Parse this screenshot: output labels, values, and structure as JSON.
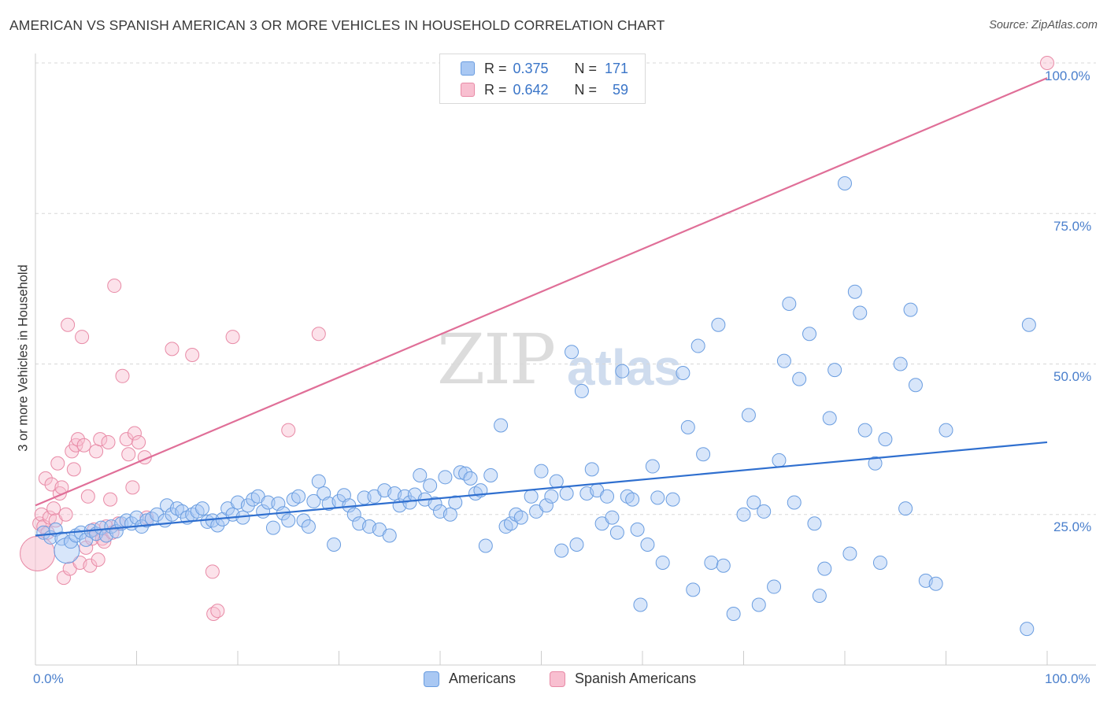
{
  "header": {
    "title": "AMERICAN VS SPANISH AMERICAN 3 OR MORE VEHICLES IN HOUSEHOLD CORRELATION CHART",
    "source": "Source: ZipAtlas.com"
  },
  "watermark": {
    "zip": "ZIP",
    "atlas": "atlas"
  },
  "legend": {
    "r_label": "R =",
    "n_label": "N =",
    "americans": {
      "r": "0.375",
      "n": "171"
    },
    "spanish": {
      "r": "0.642",
      "n": "59"
    }
  },
  "bottom_legend": {
    "americans": "Americans",
    "spanish": "Spanish Americans"
  },
  "colors": {
    "blue_fill": "#a9c8f3",
    "blue_stroke": "#6a9de0",
    "blue_line": "#2f6fcf",
    "pink_fill": "#f8bfd0",
    "pink_stroke": "#e88aa6",
    "pink_line": "#e06f98",
    "tick_text": "#4a7fcc",
    "grid": "#d8d8d8"
  },
  "chart_data": {
    "type": "scatter",
    "title": "AMERICAN VS SPANISH AMERICAN 3 OR MORE VEHICLES IN HOUSEHOLD CORRELATION CHART",
    "xlabel": "",
    "ylabel": "3 or more Vehicles in Household",
    "xlim": [
      0,
      100
    ],
    "ylim": [
      0,
      100
    ],
    "x_tick_labels": [
      "0.0%",
      "100.0%"
    ],
    "y_tick_labels": [
      "25.0%",
      "50.0%",
      "75.0%",
      "100.0%"
    ],
    "y_ticks": [
      25,
      50,
      75,
      100
    ],
    "grid": true,
    "legend_position": "top-center",
    "series": [
      {
        "name": "Americans",
        "r": 0.375,
        "n": 171,
        "trend": {
          "x": [
            0,
            100
          ],
          "y": [
            21.5,
            37.0
          ]
        },
        "points": [
          [
            0.8,
            22.0
          ],
          [
            1.5,
            21.2
          ],
          [
            2.0,
            22.5
          ],
          [
            2.6,
            21.0
          ],
          [
            3.1,
            19.0
          ],
          [
            3.5,
            20.5
          ],
          [
            4.0,
            21.5
          ],
          [
            4.5,
            22.0
          ],
          [
            5.0,
            20.8
          ],
          [
            5.5,
            22.3
          ],
          [
            6.0,
            21.8
          ],
          [
            6.5,
            22.8
          ],
          [
            7.0,
            21.5
          ],
          [
            7.5,
            23.0
          ],
          [
            8.0,
            22.2
          ],
          [
            8.5,
            23.5
          ],
          [
            9.0,
            24.0
          ],
          [
            9.5,
            23.5
          ],
          [
            10.0,
            24.5
          ],
          [
            10.5,
            23.0
          ],
          [
            11.0,
            24.0
          ],
          [
            11.5,
            24.3
          ],
          [
            12.0,
            25.0
          ],
          [
            12.8,
            24.0
          ],
          [
            13.0,
            26.5
          ],
          [
            13.5,
            25.0
          ],
          [
            14.0,
            26.0
          ],
          [
            14.5,
            25.5
          ],
          [
            15.0,
            24.5
          ],
          [
            15.5,
            25.0
          ],
          [
            16.0,
            25.5
          ],
          [
            16.5,
            26.0
          ],
          [
            17.0,
            23.8
          ],
          [
            17.5,
            24.0
          ],
          [
            18.0,
            23.2
          ],
          [
            18.5,
            24.2
          ],
          [
            19.0,
            26.0
          ],
          [
            19.5,
            25.0
          ],
          [
            20.0,
            27.0
          ],
          [
            20.5,
            24.5
          ],
          [
            21.0,
            26.5
          ],
          [
            21.5,
            27.5
          ],
          [
            22.0,
            28.0
          ],
          [
            22.5,
            25.5
          ],
          [
            23.0,
            27.0
          ],
          [
            23.5,
            22.8
          ],
          [
            24.0,
            26.8
          ],
          [
            24.5,
            25.2
          ],
          [
            25.0,
            24.0
          ],
          [
            25.5,
            27.5
          ],
          [
            26.0,
            28.0
          ],
          [
            26.5,
            24.0
          ],
          [
            27.0,
            23.0
          ],
          [
            27.5,
            27.2
          ],
          [
            28.0,
            30.5
          ],
          [
            28.5,
            28.5
          ],
          [
            29.0,
            26.8
          ],
          [
            29.5,
            20.0
          ],
          [
            30.0,
            27.2
          ],
          [
            30.5,
            28.2
          ],
          [
            31.0,
            26.5
          ],
          [
            31.5,
            25.0
          ],
          [
            32.0,
            23.5
          ],
          [
            32.5,
            27.8
          ],
          [
            33.0,
            23.0
          ],
          [
            33.5,
            28.0
          ],
          [
            34.0,
            22.5
          ],
          [
            34.5,
            29.0
          ],
          [
            35.0,
            21.5
          ],
          [
            35.5,
            28.5
          ],
          [
            36.0,
            26.5
          ],
          [
            36.5,
            28.0
          ],
          [
            37.0,
            27.0
          ],
          [
            37.5,
            28.3
          ],
          [
            38.0,
            31.5
          ],
          [
            38.5,
            27.5
          ],
          [
            39.0,
            29.8
          ],
          [
            39.5,
            26.8
          ],
          [
            40.0,
            25.5
          ],
          [
            40.5,
            31.2
          ],
          [
            41.0,
            25.0
          ],
          [
            41.5,
            27.0
          ],
          [
            42.0,
            32.0
          ],
          [
            42.5,
            31.8
          ],
          [
            43.0,
            31.0
          ],
          [
            43.5,
            28.5
          ],
          [
            44.0,
            29.0
          ],
          [
            44.5,
            19.8
          ],
          [
            45.0,
            31.5
          ],
          [
            46.0,
            39.8
          ],
          [
            46.5,
            23.0
          ],
          [
            47.0,
            23.5
          ],
          [
            47.5,
            25.0
          ],
          [
            48.0,
            24.5
          ],
          [
            49.0,
            28.0
          ],
          [
            49.5,
            25.5
          ],
          [
            50.0,
            32.2
          ],
          [
            50.5,
            26.5
          ],
          [
            51.0,
            28.0
          ],
          [
            51.5,
            30.5
          ],
          [
            52.0,
            19.0
          ],
          [
            52.5,
            28.5
          ],
          [
            53.0,
            52.0
          ],
          [
            53.5,
            20.0
          ],
          [
            54.0,
            45.5
          ],
          [
            54.5,
            28.5
          ],
          [
            55.0,
            32.5
          ],
          [
            55.5,
            29.0
          ],
          [
            56.0,
            23.5
          ],
          [
            56.5,
            28.0
          ],
          [
            57.0,
            24.5
          ],
          [
            57.5,
            22.0
          ],
          [
            58.0,
            48.8
          ],
          [
            58.5,
            28.0
          ],
          [
            59.0,
            27.5
          ],
          [
            59.5,
            22.5
          ],
          [
            59.8,
            10.0
          ],
          [
            60.5,
            20.0
          ],
          [
            61.0,
            33.0
          ],
          [
            61.5,
            27.8
          ],
          [
            62.0,
            17.0
          ],
          [
            63.0,
            27.5
          ],
          [
            64.0,
            48.5
          ],
          [
            64.5,
            39.5
          ],
          [
            65.0,
            12.5
          ],
          [
            65.5,
            53.0
          ],
          [
            66.0,
            35.0
          ],
          [
            66.8,
            17.0
          ],
          [
            67.5,
            56.5
          ],
          [
            68.0,
            16.5
          ],
          [
            69.0,
            8.5
          ],
          [
            70.0,
            25.0
          ],
          [
            70.5,
            41.5
          ],
          [
            71.0,
            27.0
          ],
          [
            71.5,
            10.0
          ],
          [
            72.0,
            25.5
          ],
          [
            73.0,
            13.0
          ],
          [
            73.5,
            34.0
          ],
          [
            74.0,
            50.5
          ],
          [
            74.5,
            60.0
          ],
          [
            75.0,
            27.0
          ],
          [
            75.5,
            47.5
          ],
          [
            76.5,
            55.0
          ],
          [
            77.0,
            23.5
          ],
          [
            77.5,
            11.5
          ],
          [
            78.0,
            16.0
          ],
          [
            78.5,
            41.0
          ],
          [
            79.0,
            49.0
          ],
          [
            80.0,
            80.0
          ],
          [
            80.5,
            18.5
          ],
          [
            81.0,
            62.0
          ],
          [
            81.5,
            58.5
          ],
          [
            82.0,
            39.0
          ],
          [
            83.0,
            33.5
          ],
          [
            83.5,
            17.0
          ],
          [
            84.0,
            37.5
          ],
          [
            85.5,
            50.0
          ],
          [
            86.0,
            26.0
          ],
          [
            86.5,
            59.0
          ],
          [
            87.0,
            46.5
          ],
          [
            88.0,
            14.0
          ],
          [
            89.0,
            13.5
          ],
          [
            90.0,
            39.0
          ],
          [
            98.0,
            6.0
          ],
          [
            98.2,
            56.5
          ]
        ]
      },
      {
        "name": "Spanish Americans",
        "r": 0.642,
        "n": 59,
        "trend": {
          "x": [
            0,
            100
          ],
          "y": [
            26.5,
            97.5
          ]
        },
        "points": [
          [
            0.2,
            18.5
          ],
          [
            0.4,
            23.5
          ],
          [
            0.6,
            25.0
          ],
          [
            0.8,
            23.0
          ],
          [
            1.0,
            31.0
          ],
          [
            1.2,
            22.0
          ],
          [
            1.4,
            24.5
          ],
          [
            1.6,
            30.0
          ],
          [
            1.8,
            26.0
          ],
          [
            2.0,
            24.0
          ],
          [
            2.2,
            33.5
          ],
          [
            2.4,
            28.5
          ],
          [
            2.6,
            29.5
          ],
          [
            2.8,
            14.5
          ],
          [
            3.0,
            25.0
          ],
          [
            3.2,
            56.5
          ],
          [
            3.4,
            16.0
          ],
          [
            3.6,
            35.5
          ],
          [
            3.8,
            32.5
          ],
          [
            4.0,
            36.5
          ],
          [
            4.2,
            37.5
          ],
          [
            4.4,
            17.0
          ],
          [
            4.6,
            54.5
          ],
          [
            4.8,
            36.5
          ],
          [
            5.0,
            19.5
          ],
          [
            5.2,
            28.0
          ],
          [
            5.4,
            16.5
          ],
          [
            5.6,
            21.0
          ],
          [
            5.8,
            22.5
          ],
          [
            6.0,
            35.5
          ],
          [
            6.2,
            17.5
          ],
          [
            6.4,
            37.5
          ],
          [
            6.6,
            21.0
          ],
          [
            6.8,
            20.5
          ],
          [
            7.0,
            23.0
          ],
          [
            7.2,
            37.0
          ],
          [
            7.4,
            27.5
          ],
          [
            7.6,
            22.0
          ],
          [
            7.8,
            63.0
          ],
          [
            8.2,
            23.5
          ],
          [
            8.6,
            48.0
          ],
          [
            9.0,
            37.5
          ],
          [
            9.2,
            35.0
          ],
          [
            9.6,
            29.5
          ],
          [
            9.8,
            38.5
          ],
          [
            10.2,
            37.0
          ],
          [
            10.8,
            34.5
          ],
          [
            11.0,
            24.5
          ],
          [
            13.5,
            52.5
          ],
          [
            15.5,
            51.5
          ],
          [
            17.5,
            15.5
          ],
          [
            17.6,
            8.5
          ],
          [
            18.0,
            9.0
          ],
          [
            19.5,
            54.5
          ],
          [
            25.0,
            39.0
          ],
          [
            28.0,
            55.0
          ],
          [
            100.0,
            100.0
          ]
        ]
      }
    ]
  }
}
